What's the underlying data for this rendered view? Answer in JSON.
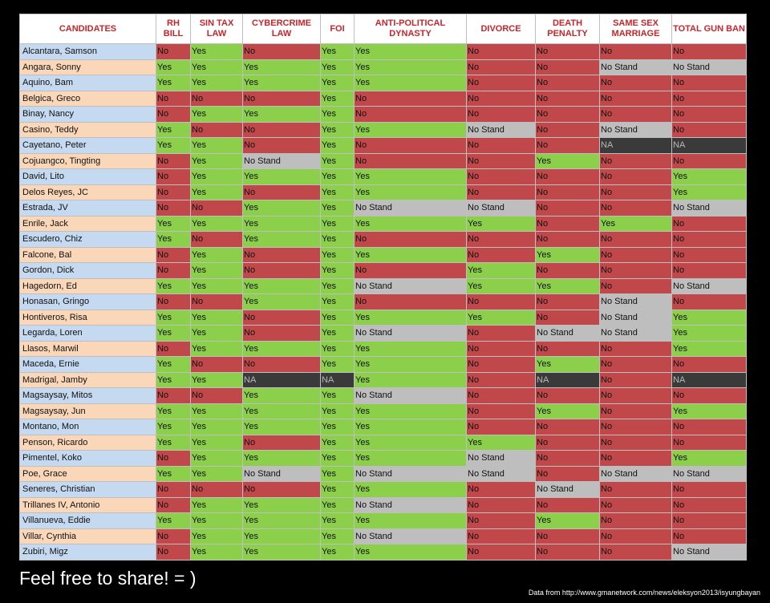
{
  "headers": [
    "CANDIDATES",
    "RH BILL",
    "SIN TAX LAW",
    "CYBERCRIME LAW",
    "FOI",
    "ANTI-POLITICAL DYNASTY",
    "DIVORCE",
    "DEATH PENALTY",
    "SAME SEX MARRIAGE",
    "TOTAL GUN BAN"
  ],
  "rows": [
    {
      "name": "Alcantara, Samson",
      "values": [
        "No",
        "Yes",
        "No",
        "Yes",
        "Yes",
        "No",
        "No",
        "No",
        "No"
      ]
    },
    {
      "name": "Angara, Sonny",
      "values": [
        "Yes",
        "Yes",
        "Yes",
        "Yes",
        "Yes",
        "No",
        "No",
        "No Stand",
        "No Stand"
      ]
    },
    {
      "name": "Aquino, Bam",
      "values": [
        "Yes",
        "Yes",
        "Yes",
        "Yes",
        "Yes",
        "No",
        "No",
        "No",
        "No"
      ]
    },
    {
      "name": "Belgica, Greco",
      "values": [
        "No",
        "No",
        "No",
        "Yes",
        "No",
        "No",
        "No",
        "No",
        "No"
      ]
    },
    {
      "name": "Binay, Nancy",
      "values": [
        "No",
        "Yes",
        "Yes",
        "Yes",
        "No",
        "No",
        "No",
        "No",
        "No"
      ]
    },
    {
      "name": "Casino, Teddy",
      "values": [
        "Yes",
        "No",
        "No",
        "Yes",
        "Yes",
        "No Stand",
        "No",
        "No Stand",
        "No"
      ]
    },
    {
      "name": "Cayetano, Peter",
      "values": [
        "Yes",
        "Yes",
        "No",
        "Yes",
        "No",
        "No",
        "No",
        "NA",
        "NA"
      ]
    },
    {
      "name": "Cojuangco, Tingting",
      "values": [
        "No",
        "Yes",
        "No Stand",
        "Yes",
        "No",
        "No",
        "Yes",
        "No",
        "No"
      ]
    },
    {
      "name": "David, Lito",
      "values": [
        "No",
        "Yes",
        "Yes",
        "Yes",
        "Yes",
        "No",
        "No",
        "No",
        "Yes"
      ]
    },
    {
      "name": "Delos Reyes, JC",
      "values": [
        "No",
        "Yes",
        "No",
        "Yes",
        "Yes",
        "No",
        "No",
        "No",
        "Yes"
      ]
    },
    {
      "name": "Estrada, JV",
      "values": [
        "No",
        "No",
        "Yes",
        "Yes",
        "No Stand",
        "No Stand",
        "No",
        "No",
        "No Stand"
      ]
    },
    {
      "name": "Enrile, Jack",
      "values": [
        "Yes",
        "Yes",
        "Yes",
        "Yes",
        "Yes",
        "Yes",
        "No",
        "Yes",
        "No"
      ]
    },
    {
      "name": "Escudero, Chiz",
      "values": [
        "Yes",
        "No",
        "Yes",
        "Yes",
        "No",
        "No",
        "No",
        "No",
        "No"
      ]
    },
    {
      "name": "Falcone, Bal",
      "values": [
        "No",
        "Yes",
        "No",
        "Yes",
        "Yes",
        "No",
        "Yes",
        "No",
        "No"
      ]
    },
    {
      "name": "Gordon, Dick",
      "values": [
        "No",
        "Yes",
        "No",
        "Yes",
        "No",
        "Yes",
        "No",
        "No",
        "No"
      ]
    },
    {
      "name": "Hagedorn, Ed",
      "values": [
        "Yes",
        "Yes",
        "Yes",
        "Yes",
        "No Stand",
        "Yes",
        "Yes",
        "No",
        "No Stand"
      ]
    },
    {
      "name": "Honasan, Gringo",
      "values": [
        "No",
        "No",
        "Yes",
        "Yes",
        "No",
        "No",
        "No",
        "No Stand",
        "No"
      ]
    },
    {
      "name": "Hontiveros, Risa",
      "values": [
        "Yes",
        "Yes",
        "No",
        "Yes",
        "Yes",
        "Yes",
        "No",
        "No Stand",
        "Yes"
      ]
    },
    {
      "name": "Legarda, Loren",
      "values": [
        "Yes",
        "Yes",
        "No",
        "Yes",
        "No Stand",
        "No",
        "No Stand",
        "No Stand",
        "Yes"
      ]
    },
    {
      "name": "Llasos, Marwil",
      "values": [
        "No",
        "Yes",
        "Yes",
        "Yes",
        "Yes",
        "No",
        "No",
        "No",
        "Yes"
      ]
    },
    {
      "name": "Maceda, Ernie",
      "values": [
        "Yes",
        "No",
        "No",
        "Yes",
        "Yes",
        "No",
        "Yes",
        "No",
        "No"
      ]
    },
    {
      "name": "Madrigal, Jamby",
      "values": [
        "Yes",
        "Yes",
        "NA",
        "NA",
        "Yes",
        "No",
        "NA",
        "No",
        "NA"
      ]
    },
    {
      "name": "Magsaysay, Mitos",
      "values": [
        "No",
        "No",
        "Yes",
        "Yes",
        "No Stand",
        "No",
        "No",
        "No",
        "No"
      ]
    },
    {
      "name": "Magsaysay, Jun",
      "values": [
        "Yes",
        "Yes",
        "Yes",
        "Yes",
        "Yes",
        "No",
        "Yes",
        "No",
        "Yes"
      ]
    },
    {
      "name": "Montano, Mon",
      "values": [
        "Yes",
        "Yes",
        "Yes",
        "Yes",
        "Yes",
        "No",
        "No",
        "No",
        "No"
      ]
    },
    {
      "name": "Penson, Ricardo",
      "values": [
        "Yes",
        "Yes",
        "No",
        "Yes",
        "Yes",
        "Yes",
        "No",
        "No",
        "No"
      ]
    },
    {
      "name": "Pimentel, Koko",
      "values": [
        "No",
        "Yes",
        "Yes",
        "Yes",
        "Yes",
        "No Stand",
        "No",
        "No",
        "Yes"
      ]
    },
    {
      "name": "Poe, Grace",
      "values": [
        "Yes",
        "Yes",
        "No Stand",
        "Yes",
        "No Stand",
        "No Stand",
        "No",
        "No Stand",
        "No Stand"
      ]
    },
    {
      "name": "Seneres, Christian",
      "values": [
        "No",
        "No",
        "No",
        "Yes",
        "Yes",
        "No",
        "No Stand",
        "No",
        "No"
      ]
    },
    {
      "name": "Trillanes IV, Antonio",
      "values": [
        "No",
        "Yes",
        "Yes",
        "Yes",
        "No Stand",
        "No",
        "No",
        "No",
        "No"
      ]
    },
    {
      "name": "Villanueva, Eddie",
      "values": [
        "Yes",
        "Yes",
        "Yes",
        "Yes",
        "Yes",
        "No",
        "Yes",
        "No",
        "No"
      ]
    },
    {
      "name": "Villar, Cynthia",
      "values": [
        "No",
        "Yes",
        "Yes",
        "Yes",
        "No Stand",
        "No",
        "No",
        "No",
        "No"
      ]
    },
    {
      "name": "Zubiri, Migz",
      "values": [
        "No",
        "Yes",
        "Yes",
        "Yes",
        "Yes",
        "No",
        "No",
        "No",
        "No Stand"
      ]
    }
  ],
  "colors": {
    "yes": "#8ccf4a",
    "no": "#c0484a",
    "no_stand": "#bebebe",
    "na": "#3a3a3a",
    "header_text": "#c8252c"
  },
  "footer": {
    "share_text": "Feel free to share! = )",
    "source_text": "Data from http://www.gmanetwork.com/news/eleksyon2013/isyungbayan"
  }
}
